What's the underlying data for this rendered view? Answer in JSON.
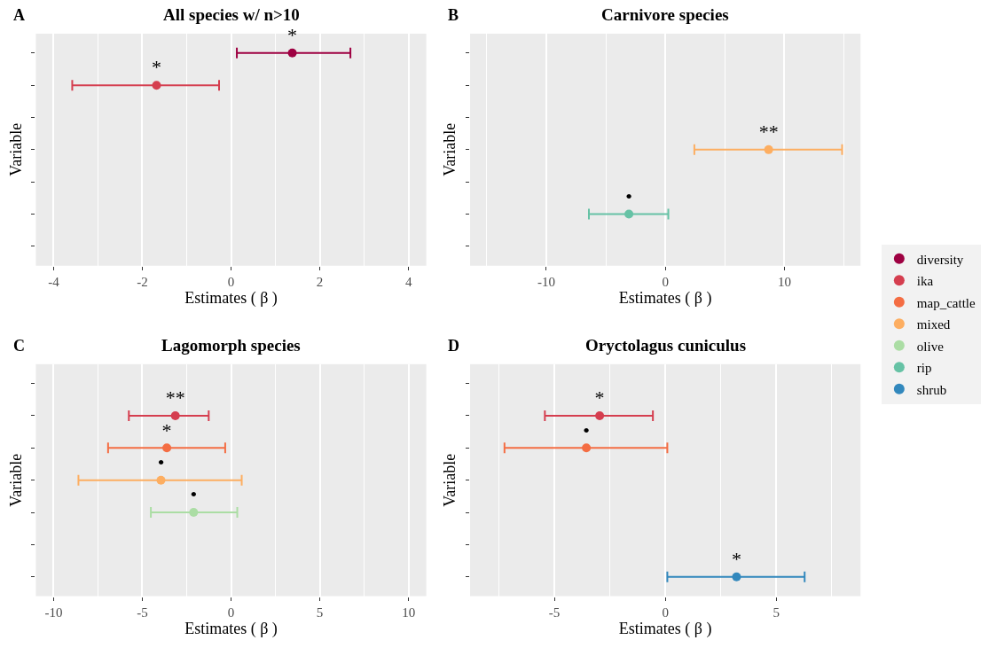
{
  "chart_data": [
    {
      "type": "scatter",
      "orientation": "horizontal",
      "title": "All species w/ n>10",
      "xlabel": "Estimates ( β )",
      "ylabel": "Variable",
      "annotations": [
        "A"
      ],
      "categories": [
        null,
        null,
        null,
        null,
        null,
        null,
        null
      ],
      "xlim": [
        -4.4,
        4.4
      ],
      "xticks": [
        -4,
        -2,
        0,
        2,
        4
      ],
      "grid": "x",
      "legend": "right",
      "tick_labels": "x",
      "marker": "circle",
      "series": [
        {
          "name": "diversity",
          "color": "#9e0142",
          "values": [
            1.38,
            null,
            null,
            null,
            null,
            null,
            null
          ],
          "errors": [
            [
              0.13,
              2.69
            ],
            null,
            null,
            null,
            null,
            null,
            null
          ],
          "value_labels": [
            "*",
            null,
            null,
            null,
            null,
            null,
            null
          ]
        },
        {
          "name": "ika",
          "color": "#d53e4f",
          "values": [
            null,
            -1.68,
            null,
            null,
            null,
            null,
            null
          ],
          "errors": [
            null,
            [
              -3.58,
              -0.27
            ],
            null,
            null,
            null,
            null,
            null
          ],
          "value_labels": [
            null,
            "*",
            null,
            null,
            null,
            null,
            null
          ]
        }
      ]
    },
    {
      "type": "scatter",
      "orientation": "horizontal",
      "title": "Carnivore species",
      "xlabel": "Estimates ( β )",
      "ylabel": "Variable",
      "annotations": [
        "B"
      ],
      "categories": [
        null,
        null,
        null,
        null,
        null,
        null,
        null
      ],
      "xlim": [
        -16.4,
        16.4
      ],
      "xticks": [
        -10,
        0,
        10
      ],
      "grid": "x",
      "legend": "right",
      "tick_labels": "x",
      "marker": "circle",
      "series": [
        {
          "name": "mixed",
          "color": "#fdae61",
          "values": [
            null,
            null,
            null,
            8.68,
            null,
            null,
            null
          ],
          "errors": [
            null,
            null,
            null,
            [
              2.44,
              14.85
            ],
            null,
            null,
            null
          ],
          "value_labels": [
            null,
            null,
            null,
            "**",
            null,
            null,
            null
          ]
        },
        {
          "name": "rip",
          "color": "#66c2a5",
          "values": [
            null,
            null,
            null,
            null,
            null,
            -3.06,
            null
          ],
          "errors": [
            null,
            null,
            null,
            null,
            null,
            [
              -6.42,
              0.25
            ],
            null
          ],
          "value_labels": [
            null,
            null,
            null,
            null,
            null,
            "•",
            null
          ]
        }
      ]
    },
    {
      "type": "scatter",
      "orientation": "horizontal",
      "title": "Lagomorph species",
      "xlabel": "Estimates ( β )",
      "ylabel": "Variable",
      "annotations": [
        "C"
      ],
      "categories": [
        null,
        null,
        null,
        null,
        null,
        null,
        null
      ],
      "xlim": [
        -11.0,
        11.0
      ],
      "xticks": [
        -10,
        -5,
        0,
        5,
        10
      ],
      "grid": "x",
      "legend": "right",
      "tick_labels": "x",
      "marker": "circle",
      "series": [
        {
          "name": "ika",
          "color": "#d53e4f",
          "values": [
            null,
            -3.14,
            null,
            null,
            null,
            null,
            null
          ],
          "errors": [
            null,
            [
              -5.76,
              -1.26
            ],
            null,
            null,
            null,
            null,
            null
          ],
          "value_labels": [
            null,
            "**",
            null,
            null,
            null,
            null,
            null
          ]
        },
        {
          "name": "map_cattle",
          "color": "#f46d43",
          "values": [
            null,
            null,
            -3.62,
            null,
            null,
            null,
            null
          ],
          "errors": [
            null,
            null,
            [
              -6.93,
              -0.33
            ],
            null,
            null,
            null,
            null
          ],
          "value_labels": [
            null,
            null,
            "*",
            null,
            null,
            null,
            null
          ]
        },
        {
          "name": "mixed",
          "color": "#fdae61",
          "values": [
            null,
            null,
            null,
            -3.95,
            null,
            null,
            null
          ],
          "errors": [
            null,
            null,
            null,
            [
              -8.6,
              0.6
            ],
            null,
            null,
            null
          ],
          "value_labels": [
            null,
            null,
            null,
            "•",
            null,
            null,
            null
          ]
        },
        {
          "name": "olive",
          "color": "#abdda4",
          "values": [
            null,
            null,
            null,
            null,
            -2.11,
            null,
            null
          ],
          "errors": [
            null,
            null,
            null,
            null,
            [
              -4.52,
              0.35
            ],
            null,
            null
          ],
          "value_labels": [
            null,
            null,
            null,
            null,
            "•",
            null,
            null
          ]
        }
      ]
    },
    {
      "type": "scatter",
      "orientation": "horizontal",
      "title": "Oryctolagus cuniculus",
      "xlabel": "Estimates ( β )",
      "ylabel": "Variable",
      "annotations": [
        "D"
      ],
      "categories": [
        null,
        null,
        null,
        null,
        null,
        null,
        null
      ],
      "xlim": [
        -8.8,
        8.8
      ],
      "xticks": [
        -5,
        0,
        5
      ],
      "grid": "x",
      "legend": "right",
      "tick_labels": "x",
      "marker": "circle",
      "series": [
        {
          "name": "ika",
          "color": "#d53e4f",
          "values": [
            null,
            -2.96,
            null,
            null,
            null,
            null,
            null
          ],
          "errors": [
            null,
            [
              -5.43,
              -0.56
            ],
            null,
            null,
            null,
            null,
            null
          ],
          "value_labels": [
            null,
            "*",
            null,
            null,
            null,
            null,
            null
          ]
        },
        {
          "name": "map_cattle",
          "color": "#f46d43",
          "values": [
            null,
            null,
            -3.56,
            null,
            null,
            null,
            null
          ],
          "errors": [
            null,
            null,
            [
              -7.25,
              0.09
            ],
            null,
            null,
            null,
            null
          ],
          "value_labels": [
            null,
            null,
            "•",
            null,
            null,
            null,
            null
          ]
        },
        {
          "name": "shrub",
          "color": "#3288bd",
          "values": [
            null,
            null,
            null,
            null,
            null,
            null,
            3.21
          ],
          "errors": [
            null,
            null,
            null,
            null,
            null,
            null,
            [
              0.09,
              6.28
            ]
          ],
          "value_labels": [
            null,
            null,
            null,
            null,
            null,
            null,
            "*"
          ]
        }
      ]
    }
  ]
}
